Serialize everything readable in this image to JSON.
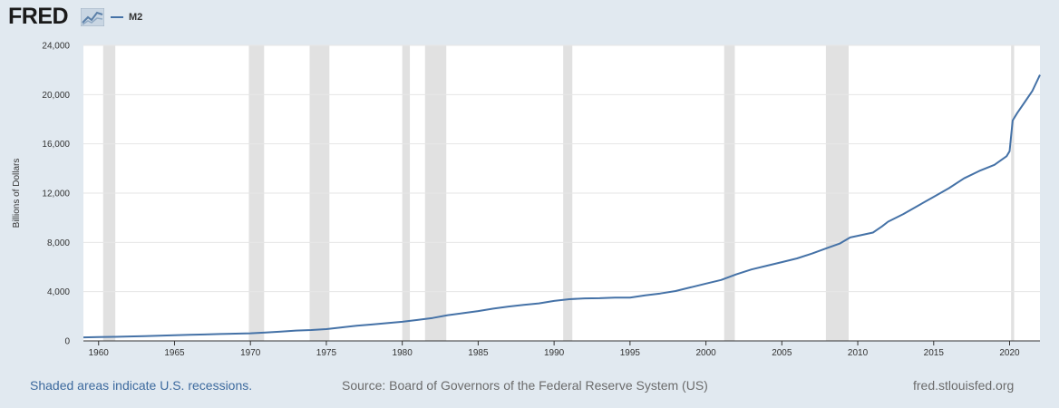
{
  "header": {
    "logo_text": "FRED",
    "logo_icon": "fred-graph-icon",
    "legend_label": "M2"
  },
  "footer": {
    "recession_note": "Shaded areas indicate U.S. recessions.",
    "source": "Source: Board of Governors of the Federal Reserve System (US)",
    "site": "fred.stlouisfed.org"
  },
  "colors": {
    "background": "#e1e9f0",
    "plot_background": "#ffffff",
    "series_line": "#4572a7",
    "recession_shade": "#e1e1e1",
    "gridline": "#e6e6e6"
  },
  "chart_data": {
    "type": "line",
    "title": "",
    "xlabel": "",
    "ylabel": "Billions of Dollars",
    "xlim": [
      1959.0,
      2022.0
    ],
    "ylim": [
      0,
      24000
    ],
    "yticks": [
      0,
      4000,
      8000,
      12000,
      16000,
      20000,
      24000
    ],
    "ytick_labels": [
      "0",
      "4,000",
      "8,000",
      "12,000",
      "16,000",
      "20,000",
      "24,000"
    ],
    "xticks": [
      1960,
      1965,
      1970,
      1975,
      1980,
      1985,
      1990,
      1995,
      2000,
      2005,
      2010,
      2015,
      2020
    ],
    "xtick_labels": [
      "1960",
      "1965",
      "1970",
      "1975",
      "1980",
      "1985",
      "1990",
      "1995",
      "2000",
      "2005",
      "2010",
      "2015",
      "2020"
    ],
    "grid": true,
    "legend": "top-left",
    "recessions": [
      [
        1960.3,
        1961.1
      ],
      [
        1969.9,
        1970.9
      ],
      [
        1973.9,
        1975.2
      ],
      [
        1980.0,
        1980.5
      ],
      [
        1981.5,
        1982.9
      ],
      [
        1990.6,
        1991.2
      ],
      [
        2001.2,
        2001.9
      ],
      [
        2007.9,
        2009.4
      ],
      [
        2020.1,
        2020.3
      ]
    ],
    "series": [
      {
        "name": "M2",
        "x": [
          1959.0,
          1960.0,
          1961.0,
          1962.0,
          1963.0,
          1964.0,
          1965.0,
          1966.0,
          1967.0,
          1968.0,
          1969.0,
          1970.0,
          1971.0,
          1972.0,
          1973.0,
          1974.0,
          1975.0,
          1976.0,
          1977.0,
          1978.0,
          1979.0,
          1980.0,
          1981.0,
          1982.0,
          1983.0,
          1984.0,
          1985.0,
          1986.0,
          1987.0,
          1988.0,
          1989.0,
          1990.0,
          1991.0,
          1992.0,
          1993.0,
          1994.0,
          1995.0,
          1996.0,
          1997.0,
          1998.0,
          1999.0,
          2000.0,
          2001.0,
          2002.0,
          2003.0,
          2004.0,
          2005.0,
          2006.0,
          2007.0,
          2008.0,
          2008.8,
          2009.5,
          2010.0,
          2011.0,
          2011.6,
          2012.0,
          2013.0,
          2014.0,
          2015.0,
          2016.0,
          2017.0,
          2018.0,
          2019.0,
          2019.8,
          2020.0,
          2020.2,
          2020.5,
          2021.0,
          2021.5,
          2022.0
        ],
        "values": [
          290,
          310,
          330,
          360,
          390,
          420,
          460,
          490,
          520,
          560,
          590,
          620,
          680,
          760,
          840,
          880,
          960,
          1100,
          1240,
          1330,
          1440,
          1550,
          1700,
          1860,
          2090,
          2250,
          2420,
          2620,
          2790,
          2920,
          3050,
          3250,
          3390,
          3450,
          3470,
          3510,
          3520,
          3700,
          3850,
          4050,
          4350,
          4650,
          4950,
          5400,
          5800,
          6100,
          6400,
          6700,
          7100,
          7550,
          7900,
          8400,
          8530,
          8800,
          9300,
          9680,
          10300,
          11000,
          11700,
          12400,
          13200,
          13800,
          14300,
          15000,
          15400,
          17900,
          18500,
          19400,
          20300,
          21600
        ]
      }
    ]
  }
}
